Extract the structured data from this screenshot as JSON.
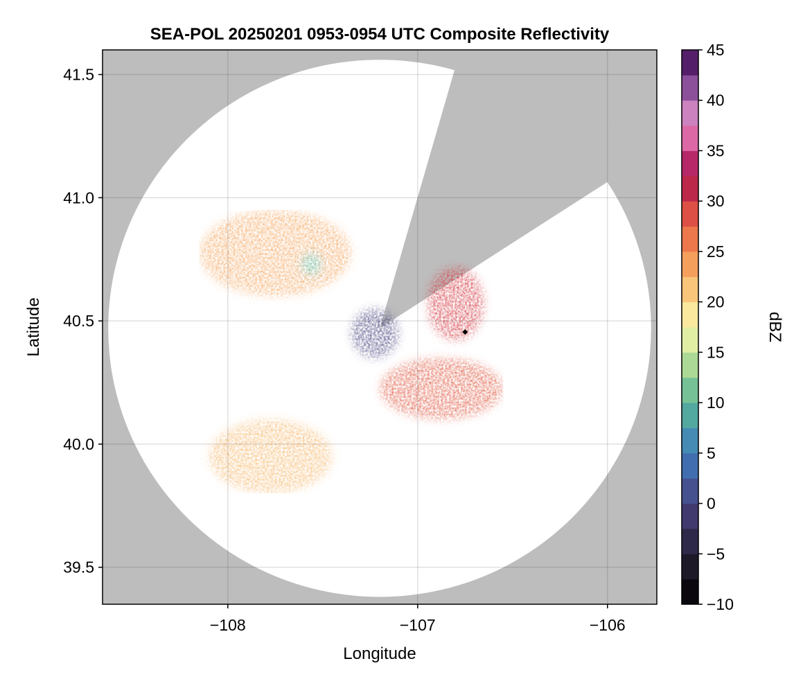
{
  "chart_data": {
    "type": "heatmap",
    "title": "SEA-POL 20250201 0953-0954 UTC Composite Reflectivity",
    "xlabel": "Longitude",
    "ylabel": "Latitude",
    "xlim": [
      -108.66,
      -105.74
    ],
    "ylim": [
      39.35,
      41.6
    ],
    "xticks": [
      -108,
      -107,
      -106
    ],
    "xtick_labels": [
      "−108",
      "−107",
      "−106"
    ],
    "yticks": [
      39.5,
      40.0,
      40.5,
      41.0,
      41.5
    ],
    "ytick_labels": [
      "39.5",
      "40.0",
      "40.5",
      "41.0",
      "41.5"
    ],
    "grid": true,
    "background_color": "#bdbdbd",
    "no_data_color": "#ffffff",
    "radar": {
      "center": [
        -107.2,
        40.47
      ],
      "range_lat_deg": 1.09,
      "range_lon_deg": 1.43,
      "blocked_sector_azimuth_deg": [
        16,
        57
      ],
      "marker": {
        "lon": -106.75,
        "lat": 40.455,
        "shape": "diamond",
        "color": "#000000"
      }
    },
    "colorbar": {
      "label": "dBZ",
      "min": -10,
      "max": 45,
      "step": 2.5,
      "ticks": [
        45,
        40,
        35,
        30,
        25,
        20,
        15,
        10,
        5,
        0,
        -5,
        -10
      ],
      "tick_labels": [
        "45",
        "40",
        "35",
        "30",
        "25",
        "20",
        "15",
        "10",
        "5",
        "0",
        "−5",
        "−10"
      ],
      "colormap": "Spectral-like (black→purple→blue→green→yellow→orange→red→pink→purple)"
    },
    "echo_regions": [
      {
        "name": "northwest echo mass",
        "lon": [
          -108.15,
          -107.35
        ],
        "lat": [
          40.6,
          40.95
        ],
        "dbz": 23
      },
      {
        "name": "green core north",
        "lon": [
          -107.62,
          -107.5
        ],
        "lat": [
          40.68,
          40.78
        ],
        "dbz": 10
      },
      {
        "name": "east sector core",
        "lon": [
          -106.95,
          -106.65
        ],
        "lat": [
          40.42,
          40.72
        ],
        "dbz": 30
      },
      {
        "name": "southeast band",
        "lon": [
          -107.2,
          -106.55
        ],
        "lat": [
          40.1,
          40.35
        ],
        "dbz": 28
      },
      {
        "name": "southwest streaks",
        "lon": [
          -108.1,
          -107.45
        ],
        "lat": [
          39.8,
          40.1
        ],
        "dbz": 22
      },
      {
        "name": "radar-center clutter",
        "lon": [
          -107.35,
          -107.1
        ],
        "lat": [
          40.35,
          40.55
        ],
        "dbz": 0
      }
    ]
  }
}
